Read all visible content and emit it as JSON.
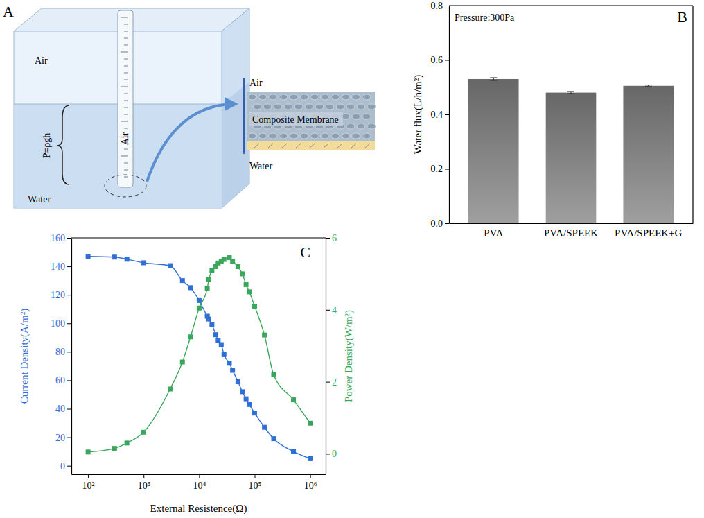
{
  "diagram": {
    "panel": "A",
    "labels": {
      "air_top": "Air",
      "tube": "Air",
      "water": "Water",
      "pressure": "P=ρgh",
      "zoom_air": "Air",
      "membrane": "Composite Membrane",
      "zoom_water": "Water"
    }
  },
  "chart_data": [
    {
      "panel": "B",
      "type": "bar",
      "annotation": "Pressure:300Pa",
      "categories": [
        "PVA",
        "PVA/SPEEK",
        "PVA/SPEEK+G"
      ],
      "values": [
        0.53,
        0.48,
        0.505
      ],
      "errors": [
        0.005,
        0.004,
        0.003
      ],
      "color": "#808080",
      "y_label": "Water flux(L/h/m²)",
      "ylim": [
        0,
        0.8
      ],
      "yticks": [
        {
          "value": 0,
          "label": "0.0"
        },
        0.2,
        0.4,
        0.6,
        0.8
      ]
    },
    {
      "panel": "C",
      "type": "line",
      "log": "x",
      "x": [
        100,
        300,
        500,
        1000,
        3000,
        5000,
        7000,
        10000,
        14000,
        15000,
        17000,
        20000,
        22000,
        25000,
        28000,
        35000,
        40000,
        50000,
        60000,
        70000,
        80000,
        100000,
        150000,
        220000,
        500000,
        1000000
      ],
      "xlim": [
        50,
        1900000
      ],
      "xticks": [
        {
          "value": 100,
          "label": "10²"
        },
        {
          "value": 1000,
          "label": "10³"
        },
        {
          "value": 10000,
          "label": "10⁴"
        },
        {
          "value": 100000,
          "label": "10⁵"
        },
        {
          "value": 1000000,
          "label": "10⁶"
        }
      ],
      "x_label": "External Resistence(Ω)",
      "y_label": "Current Density(A/m²)",
      "y2_label": "Power Density(W/m²)",
      "ylim": [
        -6,
        160
      ],
      "yticks": [
        0,
        20,
        40,
        60,
        80,
        100,
        120,
        140,
        160
      ],
      "y2lim": [
        -0.57,
        6
      ],
      "y2ticks": [
        0,
        2,
        4,
        6
      ],
      "series": [
        {
          "color": "#2f6fd6",
          "marker": "square",
          "line_style": "solid",
          "values": [
            147,
            146.5,
            145,
            142.5,
            140.5,
            130,
            125,
            116,
            105,
            103,
            99,
            92,
            88,
            85,
            78,
            72,
            67,
            59,
            52,
            47,
            43,
            37,
            27,
            19,
            10,
            5
          ]
        },
        {
          "color": "#3aa85c",
          "marker": "square",
          "line_style": "solid",
          "axis": "y2",
          "values": [
            0.05,
            0.15,
            0.3,
            0.6,
            1.8,
            2.55,
            3.25,
            4.05,
            4.6,
            4.85,
            5.1,
            5.2,
            5.3,
            5.35,
            5.4,
            5.45,
            5.35,
            5.2,
            5.0,
            4.7,
            4.5,
            4.1,
            3.3,
            2.2,
            1.5,
            0.85
          ]
        }
      ]
    }
  ]
}
